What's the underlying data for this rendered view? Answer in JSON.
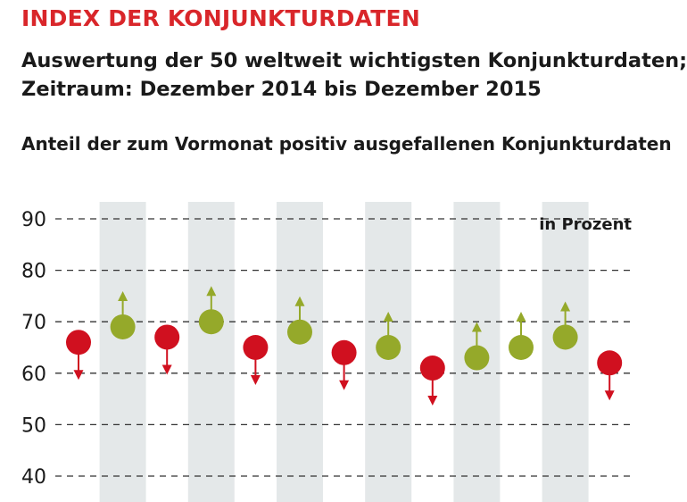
{
  "header": {
    "title": "INDEX DER KONJUNKTURDATEN",
    "subtitle_line1": "Auswertung der 50 weltweit wichtigsten Konjunkturdaten;",
    "subtitle_line2": "Zeitraum: Dezember 2014 bis Dezember 2015",
    "section_title": "Anteil der zum Vormonat positiv ausgefallenen Konjunkturdaten"
  },
  "chart_data": {
    "type": "scatter",
    "title": "Anteil der zum Vormonat positiv ausgefallenen Konjunkturdaten",
    "unit_label": "in Prozent",
    "ylim": [
      40,
      90
    ],
    "yticks": [
      "40",
      "50",
      "60",
      "70",
      "80",
      "90"
    ],
    "grid": true,
    "values": [
      66,
      69,
      67,
      70,
      65,
      68,
      64,
      65,
      61,
      63,
      65,
      67,
      62
    ],
    "direction": [
      "down",
      "up",
      "down",
      "up",
      "down",
      "up",
      "down",
      "up",
      "down",
      "up",
      "up",
      "up",
      "down"
    ],
    "colors": {
      "up": "#95a92a",
      "down": "#d0101f",
      "band": "#e4e8e9",
      "grid": "#333333"
    }
  }
}
